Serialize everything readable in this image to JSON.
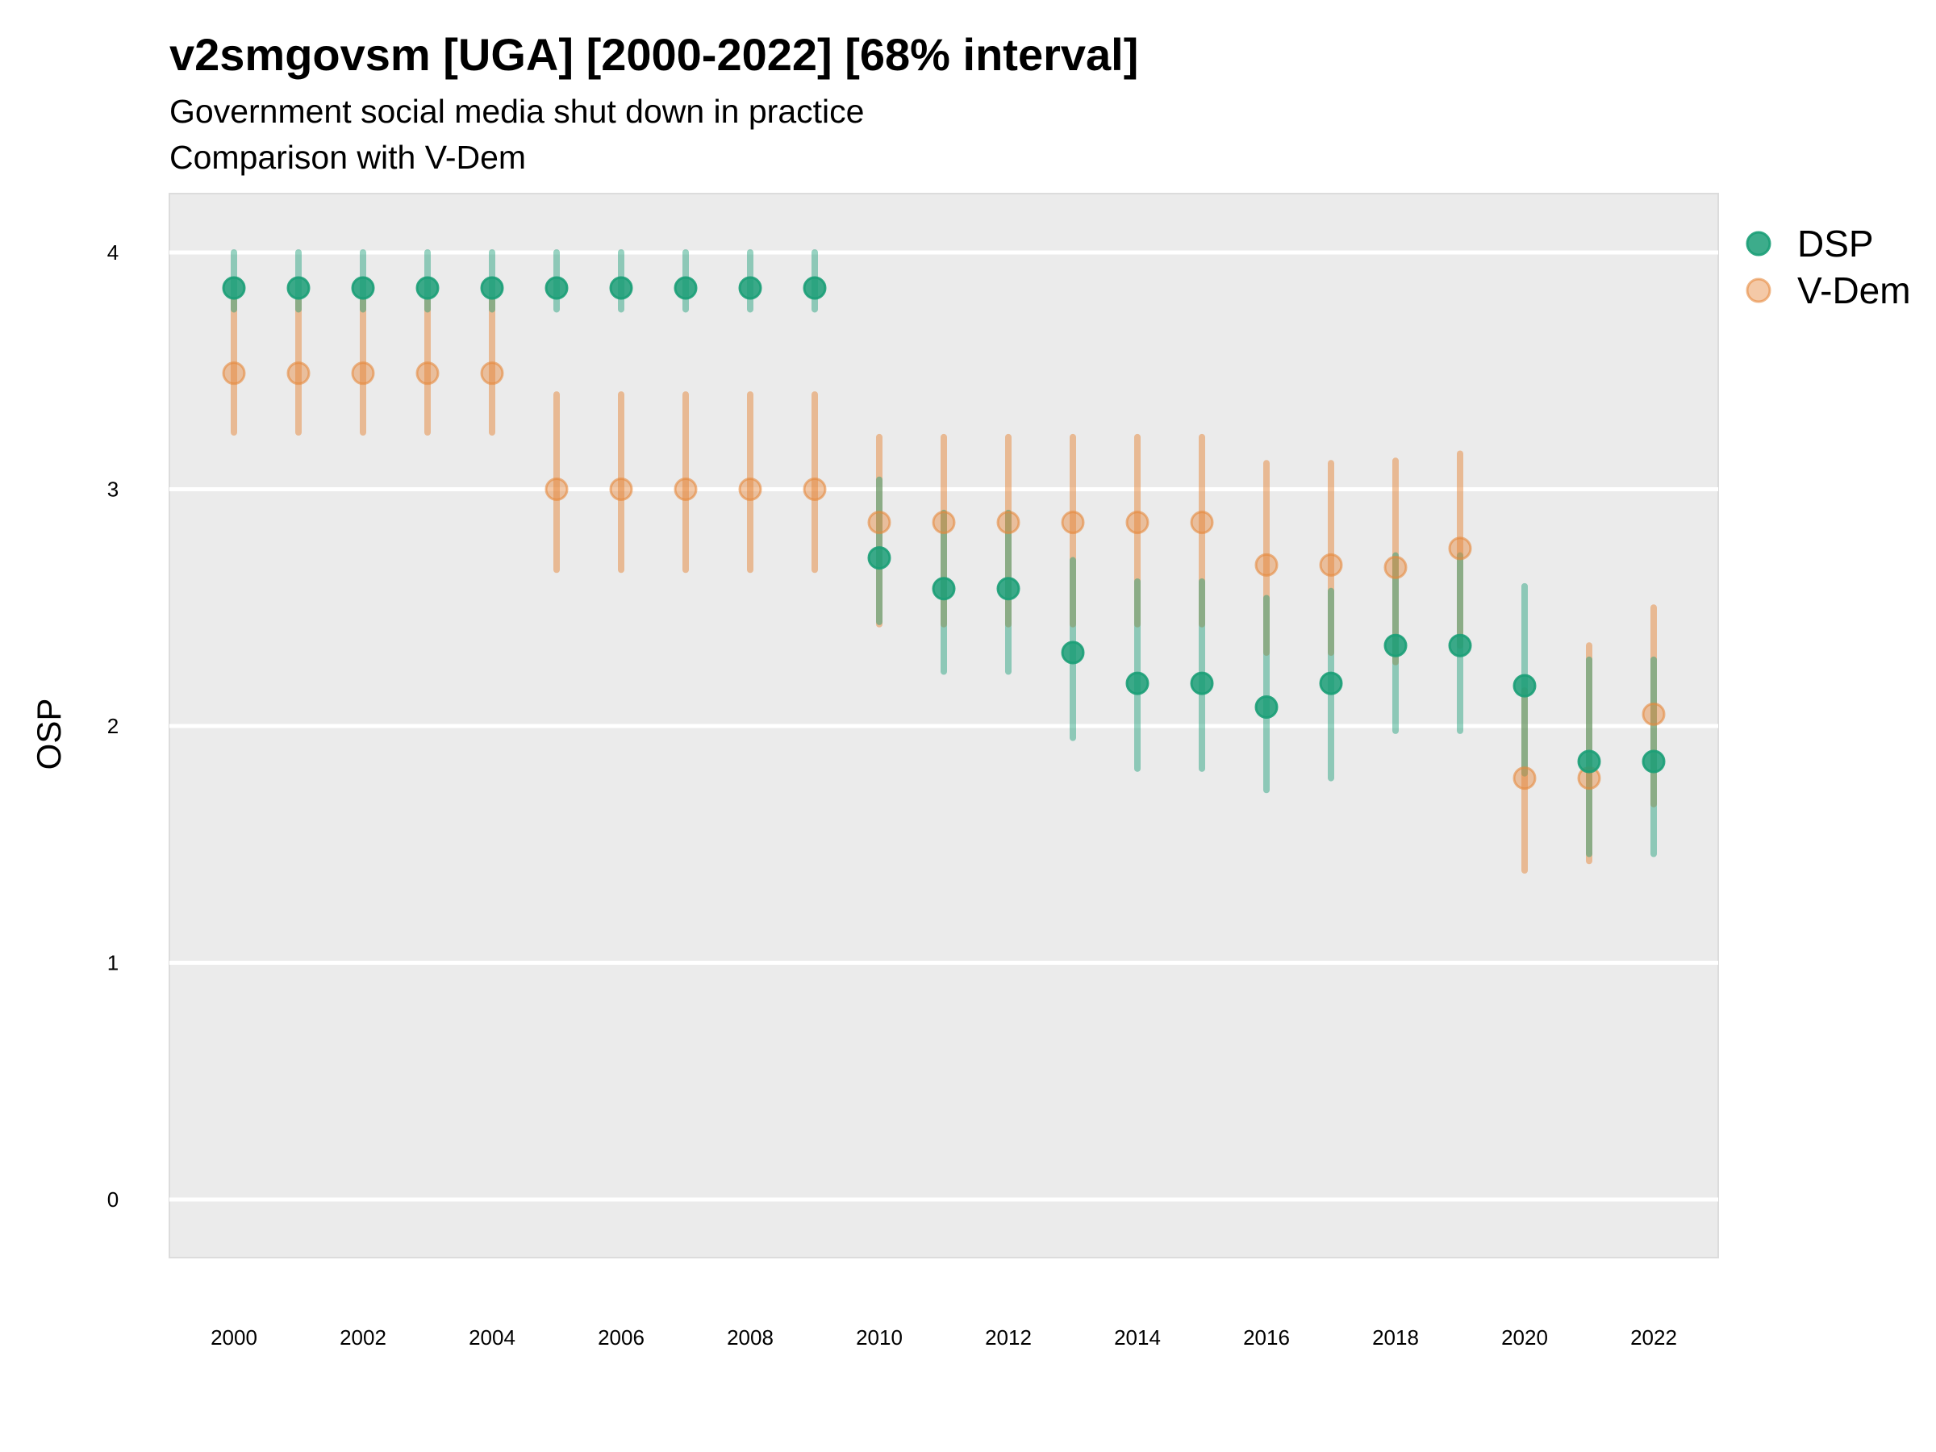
{
  "header": {
    "title": "v2smgovsm [UGA] [2000-2022] [68% interval]",
    "subtitle": "Government social media shut down in practice",
    "subtitle2": "Comparison with V-Dem"
  },
  "chart_data": {
    "type": "scatter",
    "subtype": "point-range",
    "title": "v2smgovsm [UGA] [2000-2022] [68% interval]",
    "subtitle": [
      "Government social media shut down in practice",
      "Comparison with V-Dem"
    ],
    "xlabel": "",
    "ylabel": "OSP",
    "xlim": [
      2000,
      2022
    ],
    "ylim": [
      -0.25,
      4.25
    ],
    "x_ticks": [
      2000,
      2002,
      2004,
      2006,
      2008,
      2010,
      2012,
      2014,
      2016,
      2018,
      2020,
      2022
    ],
    "y_ticks": [
      0,
      1,
      2,
      3,
      4
    ],
    "grid": true,
    "legend_position": "top-right",
    "x": [
      2000,
      2001,
      2002,
      2003,
      2004,
      2005,
      2006,
      2007,
      2008,
      2009,
      2010,
      2011,
      2012,
      2013,
      2014,
      2015,
      2016,
      2017,
      2018,
      2019,
      2020,
      2021,
      2022
    ],
    "series": [
      {
        "name": "DSP",
        "color": "#1b9e77",
        "values": [
          3.85,
          3.85,
          3.85,
          3.85,
          3.85,
          3.85,
          3.85,
          3.85,
          3.85,
          3.85,
          2.71,
          2.58,
          2.58,
          2.31,
          2.18,
          2.18,
          2.08,
          2.18,
          2.34,
          2.34,
          2.17,
          1.85,
          1.85
        ],
        "lower": [
          3.76,
          3.76,
          3.76,
          3.76,
          3.76,
          3.76,
          3.76,
          3.76,
          3.76,
          3.76,
          2.44,
          2.23,
          2.23,
          1.95,
          1.82,
          1.82,
          1.73,
          1.78,
          1.98,
          1.98,
          1.8,
          1.46,
          1.46
        ],
        "upper": [
          4.0,
          4.0,
          4.0,
          4.0,
          4.0,
          4.0,
          4.0,
          4.0,
          4.0,
          4.0,
          3.04,
          2.9,
          2.9,
          2.7,
          2.61,
          2.61,
          2.54,
          2.57,
          2.72,
          2.72,
          2.59,
          2.28,
          2.28
        ]
      },
      {
        "name": "V-Dem",
        "color": "#e6883c",
        "values": [
          3.49,
          3.49,
          3.49,
          3.49,
          3.49,
          3.0,
          3.0,
          3.0,
          3.0,
          3.0,
          2.86,
          2.86,
          2.86,
          2.86,
          2.86,
          2.86,
          2.68,
          2.68,
          2.67,
          2.75,
          1.78,
          1.78,
          2.05
        ],
        "lower": [
          3.24,
          3.24,
          3.24,
          3.24,
          3.24,
          2.66,
          2.66,
          2.66,
          2.66,
          2.66,
          2.43,
          2.43,
          2.43,
          2.43,
          2.43,
          2.43,
          2.31,
          2.31,
          2.27,
          2.34,
          1.39,
          1.43,
          1.67
        ],
        "upper": [
          3.8,
          3.8,
          3.8,
          3.8,
          3.8,
          3.4,
          3.4,
          3.4,
          3.4,
          3.4,
          3.22,
          3.22,
          3.22,
          3.22,
          3.22,
          3.22,
          3.11,
          3.11,
          3.12,
          3.15,
          2.15,
          2.34,
          2.5
        ]
      }
    ]
  }
}
